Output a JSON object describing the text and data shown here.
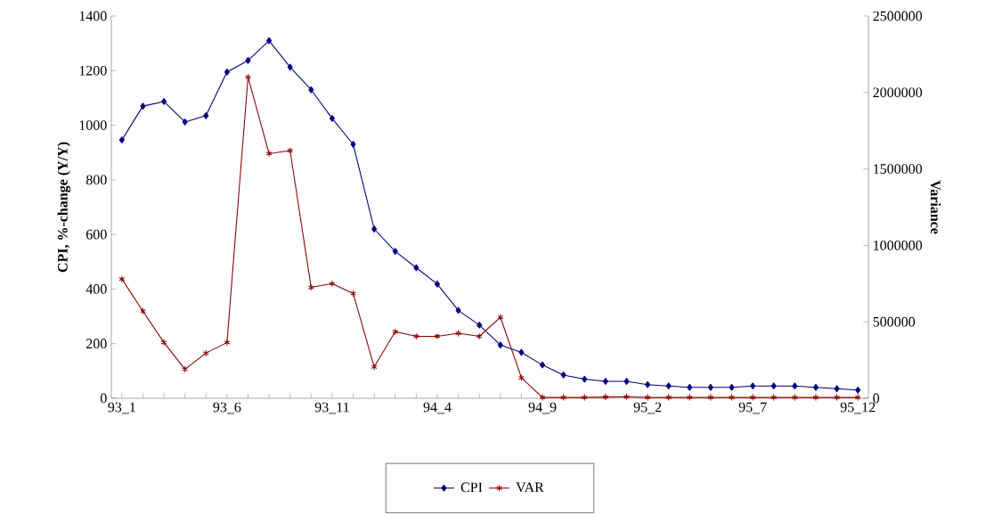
{
  "chart_data": {
    "type": "line",
    "categories": [
      "93_1",
      null,
      null,
      null,
      null,
      "93_6",
      null,
      null,
      null,
      null,
      "93_11",
      null,
      null,
      null,
      null,
      "94_4",
      null,
      null,
      null,
      null,
      "94_9",
      null,
      null,
      null,
      null,
      "95_2",
      null,
      null,
      null,
      null,
      "95_7",
      null,
      null,
      null,
      null,
      "95_12"
    ],
    "series": [
      {
        "name": "CPI",
        "color": "#000080",
        "marker": "diamond",
        "values": [
          946,
          1070,
          1087,
          1012,
          1035,
          1195,
          1237,
          1310,
          1213,
          1130,
          1025,
          930,
          620,
          538,
          478,
          418,
          322,
          268,
          195,
          168,
          122,
          85,
          70,
          62,
          62,
          50,
          45,
          40,
          40,
          40,
          45,
          45,
          45,
          40,
          35,
          30
        ]
      },
      {
        "name": "VAR",
        "color": "#8b0000",
        "marker": "cross",
        "axis": "y2",
        "values": [
          780000,
          570000,
          365000,
          190000,
          295000,
          365000,
          2100000,
          1600000,
          1620000,
          725000,
          750000,
          685000,
          205000,
          435000,
          405000,
          405000,
          425000,
          405000,
          530000,
          135000,
          5000,
          5000,
          5000,
          8000,
          10000,
          5000,
          5000,
          5000,
          5000,
          5000,
          5000,
          5000,
          5000,
          5000,
          5000,
          5000
        ]
      }
    ],
    "ylabel": "CPI, %-change (Y/Y)",
    "y2label": "Variance",
    "ylim": [
      0,
      1400
    ],
    "yticks": [
      0,
      200,
      400,
      600,
      800,
      1000,
      1200,
      1400
    ],
    "y2lim": [
      0,
      2500000
    ],
    "y2ticks": [
      0,
      500000,
      1000000,
      1500000,
      2000000,
      2500000
    ],
    "legend": "bottom",
    "line_style": "solid"
  }
}
